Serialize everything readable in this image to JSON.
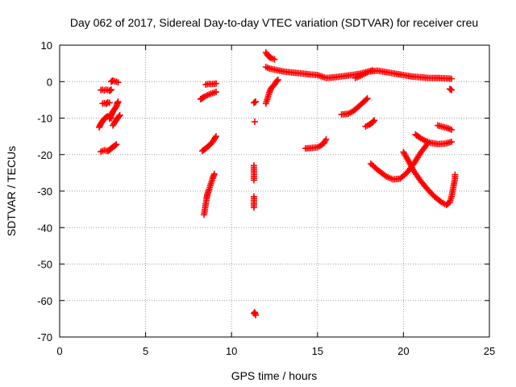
{
  "chart_data": {
    "type": "scatter",
    "title": "Day 062 of 2017, Sidereal Day-to-day VTEC variation (SDTVAR) for receiver creu",
    "xlabel": "GPS time / hours",
    "ylabel": "SDTVAR / TECUs",
    "xlim": [
      0,
      25
    ],
    "ylim": [
      -70,
      10
    ],
    "x_ticks": [
      0,
      5,
      10,
      15,
      20,
      25
    ],
    "y_ticks": [
      10,
      0,
      -10,
      -20,
      -30,
      -40,
      -50,
      -60,
      -70
    ],
    "grid": true,
    "legend": "none",
    "marker": "plus",
    "marker_color": "#ff0000",
    "series": [
      {
        "points": [
          [
            2.3,
            -12.5
          ],
          [
            2.4,
            -11.5
          ],
          [
            2.5,
            -10.8
          ],
          [
            2.6,
            -10.2
          ],
          [
            2.7,
            -9.8
          ],
          [
            2.8,
            -9.5
          ],
          [
            2.9,
            -9.6
          ],
          [
            3.0,
            -10.0
          ]
        ]
      },
      {
        "points": [
          [
            2.4,
            -19.2
          ],
          [
            2.5,
            -19.0
          ],
          [
            2.6,
            -18.8
          ],
          [
            2.7,
            -18.9
          ],
          [
            2.8,
            -19.0
          ],
          [
            2.9,
            -18.7
          ],
          [
            3.0,
            -18.3
          ],
          [
            3.1,
            -17.9
          ],
          [
            3.2,
            -17.6
          ],
          [
            3.3,
            -17.2
          ]
        ]
      },
      {
        "points": [
          [
            2.4,
            -2.3
          ],
          [
            2.5,
            -2.2
          ],
          [
            2.6,
            -2.4
          ],
          [
            2.7,
            -2.2
          ],
          [
            2.8,
            -2.3
          ],
          [
            2.9,
            -2.5
          ],
          [
            3.0,
            -2.2
          ]
        ]
      },
      {
        "points": [
          [
            2.5,
            -6.0
          ],
          [
            2.6,
            -5.9
          ],
          [
            2.7,
            -6.1
          ],
          [
            2.8,
            -5.7
          ],
          [
            2.9,
            -5.8
          ]
        ]
      },
      {
        "points": [
          [
            2.9,
            -10.2
          ],
          [
            3.0,
            -9.2
          ],
          [
            3.1,
            -8.2
          ],
          [
            3.2,
            -7.5
          ],
          [
            3.3,
            -6.8
          ],
          [
            3.35,
            -6.0
          ],
          [
            3.4,
            -5.5
          ]
        ]
      },
      {
        "points": [
          [
            3.0,
            0.0
          ],
          [
            3.1,
            0.3
          ],
          [
            3.2,
            0.1
          ],
          [
            3.3,
            0.0
          ],
          [
            3.4,
            -0.2
          ]
        ]
      },
      {
        "points": [
          [
            3.1,
            -12.0
          ],
          [
            3.2,
            -11.2
          ],
          [
            3.3,
            -10.5
          ],
          [
            3.4,
            -9.8
          ],
          [
            3.5,
            -9.2
          ]
        ]
      },
      {
        "points": [
          [
            8.2,
            -4.8
          ],
          [
            8.4,
            -4.2
          ],
          [
            8.6,
            -3.7
          ],
          [
            8.8,
            -3.3
          ],
          [
            9.0,
            -3.0
          ],
          [
            9.1,
            -2.8
          ]
        ]
      },
      {
        "points": [
          [
            8.5,
            -0.8
          ],
          [
            8.6,
            -0.7
          ],
          [
            8.7,
            -0.6
          ],
          [
            8.8,
            -0.7
          ],
          [
            8.9,
            -0.6
          ],
          [
            9.0,
            -0.6
          ],
          [
            9.1,
            -0.5
          ]
        ]
      },
      {
        "points": [
          [
            8.3,
            -19.0
          ],
          [
            8.5,
            -18.3
          ],
          [
            8.7,
            -17.5
          ],
          [
            8.9,
            -16.5
          ],
          [
            9.0,
            -15.7
          ],
          [
            9.1,
            -15.0
          ]
        ]
      },
      {
        "points": [
          [
            8.4,
            -36.5
          ],
          [
            8.45,
            -35.0
          ],
          [
            8.5,
            -33.5
          ],
          [
            8.55,
            -32.0
          ],
          [
            8.6,
            -30.8
          ],
          [
            8.7,
            -29.5
          ],
          [
            8.8,
            -28.0
          ],
          [
            8.9,
            -26.5
          ],
          [
            9.0,
            -25.3
          ]
        ]
      },
      {
        "points": [
          [
            11.3,
            -5.8
          ],
          [
            11.4,
            -5.5
          ]
        ]
      },
      {
        "points": [
          [
            11.35,
            -11.0
          ]
        ]
      },
      {
        "points": [
          [
            11.3,
            -23.0
          ],
          [
            11.3,
            -24.0
          ],
          [
            11.3,
            -25.0
          ],
          [
            11.3,
            -26.0
          ],
          [
            11.3,
            -27.0
          ]
        ]
      },
      {
        "points": [
          [
            11.3,
            -31.5
          ],
          [
            11.3,
            -32.5
          ],
          [
            11.3,
            -33.5
          ],
          [
            11.3,
            -34.5
          ]
        ]
      },
      {
        "points": [
          [
            11.3,
            -63.5
          ],
          [
            11.35,
            -63.2
          ],
          [
            11.4,
            -64.0
          ]
        ]
      },
      {
        "points": [
          [
            12.0,
            -6.0
          ],
          [
            12.1,
            -4.5
          ],
          [
            12.2,
            -3.0
          ],
          [
            12.3,
            -1.8
          ],
          [
            12.5,
            -0.8
          ],
          [
            12.6,
            0.0
          ],
          [
            12.7,
            0.5
          ]
        ]
      },
      {
        "points": [
          [
            12.0,
            8.0
          ],
          [
            12.1,
            7.2
          ],
          [
            12.2,
            6.8
          ],
          [
            12.3,
            6.5
          ],
          [
            12.4,
            6.3
          ],
          [
            12.5,
            6.1
          ]
        ]
      },
      {
        "points": [
          [
            12.0,
            4.0
          ],
          [
            12.2,
            3.6
          ],
          [
            12.5,
            3.3
          ],
          [
            12.8,
            3.0
          ],
          [
            13.0,
            2.8
          ],
          [
            13.5,
            2.5
          ],
          [
            14.0,
            2.3
          ],
          [
            14.5,
            2.0
          ],
          [
            15.0,
            1.8
          ],
          [
            15.5,
            1.0
          ],
          [
            16.0,
            1.2
          ],
          [
            16.5,
            1.5
          ],
          [
            17.0,
            1.8
          ],
          [
            17.5,
            2.2
          ],
          [
            18.0,
            2.8
          ],
          [
            18.5,
            3.0
          ],
          [
            19.0,
            2.6
          ],
          [
            19.5,
            2.2
          ],
          [
            20.0,
            1.8
          ],
          [
            20.5,
            1.4
          ],
          [
            21.0,
            1.2
          ],
          [
            21.5,
            1.0
          ],
          [
            22.0,
            1.0
          ],
          [
            22.5,
            0.9
          ],
          [
            22.8,
            0.8
          ]
        ]
      },
      {
        "points": [
          [
            17.2,
            1.0
          ],
          [
            17.5,
            1.6
          ],
          [
            17.8,
            2.3
          ],
          [
            18.0,
            2.8
          ],
          [
            18.2,
            3.1
          ]
        ]
      },
      {
        "points": [
          [
            22.7,
            -2.0
          ],
          [
            22.8,
            -2.3
          ]
        ]
      },
      {
        "points": [
          [
            14.3,
            -18.3
          ],
          [
            14.6,
            -18.2
          ],
          [
            15.0,
            -18.0
          ],
          [
            15.2,
            -17.5
          ],
          [
            15.4,
            -16.7
          ],
          [
            15.5,
            -15.8
          ]
        ]
      },
      {
        "points": [
          [
            16.4,
            -9.0
          ],
          [
            16.8,
            -8.8
          ],
          [
            17.1,
            -8.0
          ],
          [
            17.4,
            -6.8
          ],
          [
            17.7,
            -5.5
          ],
          [
            17.9,
            -4.6
          ]
        ]
      },
      {
        "points": [
          [
            17.8,
            -12.3
          ],
          [
            18.0,
            -11.8
          ],
          [
            18.2,
            -11.2
          ],
          [
            18.3,
            -10.6
          ]
        ]
      },
      {
        "points": [
          [
            18.1,
            -22.5
          ],
          [
            18.5,
            -24.2
          ],
          [
            19.0,
            -26.0
          ],
          [
            19.4,
            -26.8
          ],
          [
            19.8,
            -26.6
          ],
          [
            20.2,
            -25.0
          ],
          [
            20.6,
            -22.5
          ],
          [
            21.0,
            -19.5
          ],
          [
            21.4,
            -17.0
          ]
        ]
      },
      {
        "points": [
          [
            20.0,
            -19.3
          ],
          [
            20.3,
            -21.8
          ],
          [
            20.6,
            -24.5
          ],
          [
            21.0,
            -27.2
          ],
          [
            21.4,
            -29.5
          ],
          [
            21.8,
            -31.5
          ],
          [
            22.2,
            -33.0
          ],
          [
            22.5,
            -33.8
          ],
          [
            22.7,
            -33.0
          ],
          [
            22.8,
            -31.5
          ],
          [
            22.9,
            -29.0
          ],
          [
            23.0,
            -26.5
          ],
          [
            23.0,
            -25.5
          ]
        ]
      },
      {
        "points": [
          [
            20.7,
            -14.5
          ],
          [
            21.0,
            -15.5
          ],
          [
            21.3,
            -16.3
          ],
          [
            21.6,
            -16.8
          ],
          [
            22.0,
            -17.1
          ],
          [
            22.4,
            -17.0
          ],
          [
            22.8,
            -16.5
          ]
        ]
      },
      {
        "points": [
          [
            22.0,
            -12.0
          ],
          [
            22.3,
            -12.4
          ],
          [
            22.6,
            -12.8
          ],
          [
            22.8,
            -13.2
          ]
        ]
      }
    ]
  }
}
